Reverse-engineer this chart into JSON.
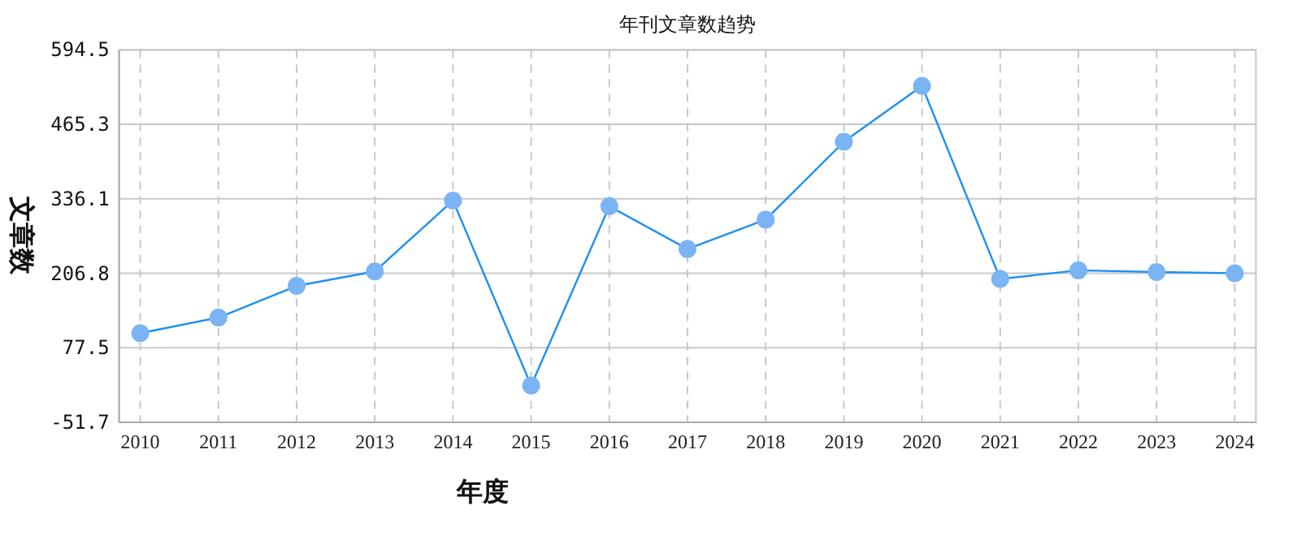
{
  "chart_data": {
    "type": "line",
    "title": "年刊文章数趋势",
    "xlabel": "年度",
    "ylabel": "文章数",
    "categories": [
      "2010",
      "2011",
      "2012",
      "2013",
      "2014",
      "2015",
      "2016",
      "2017",
      "2018",
      "2019",
      "2020",
      "2021",
      "2022",
      "2023",
      "2024"
    ],
    "series": [
      {
        "color": "#1e90f0",
        "values": [
          103,
          130,
          185,
          210,
          333,
          12,
          323,
          249,
          300,
          435,
          532,
          197,
          212,
          209,
          207
        ]
      }
    ],
    "ylim": [
      -51.7,
      594.5
    ],
    "yticks": [
      -51.7,
      77.5,
      206.8,
      336.1,
      465.3,
      594.5
    ],
    "grid": true,
    "marker": "circle",
    "line_style": "solid"
  }
}
